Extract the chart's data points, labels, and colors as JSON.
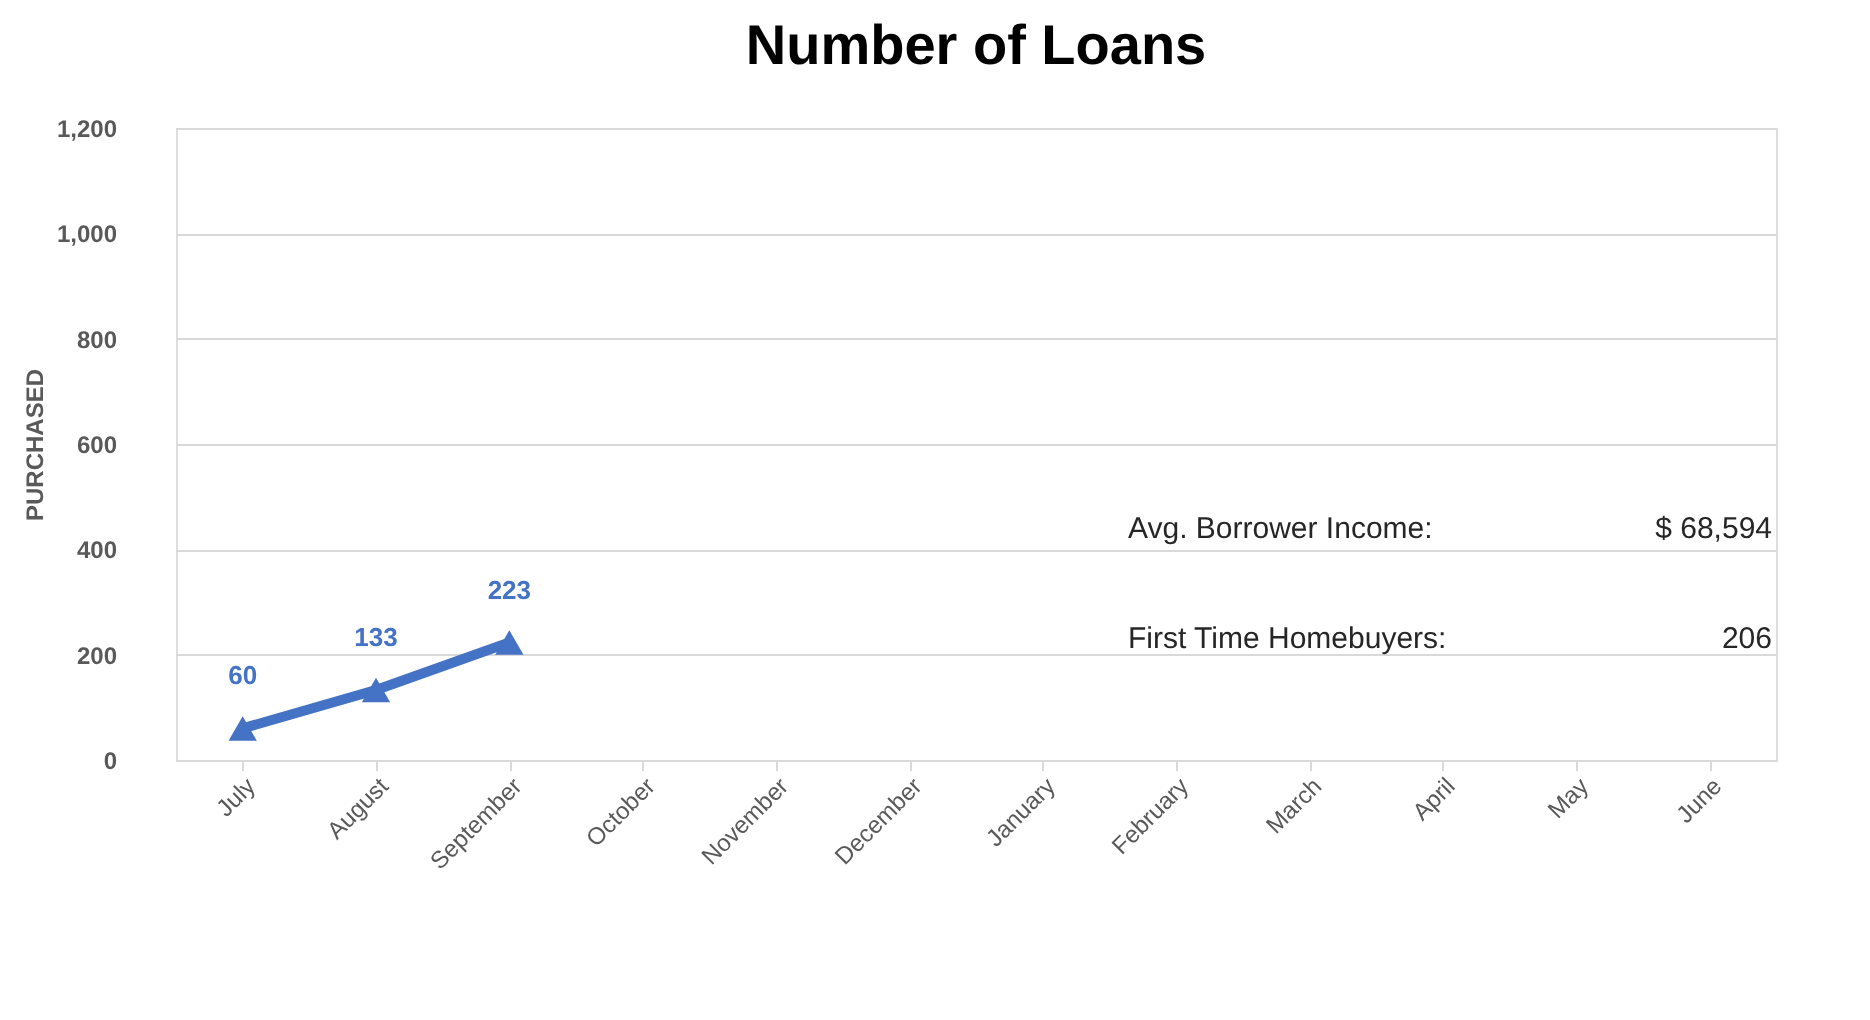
{
  "chart_data": {
    "type": "line",
    "title": "Number of Loans",
    "ylabel": "PURCHASED",
    "categories": [
      "July",
      "August",
      "September",
      "October",
      "November",
      "December",
      "January",
      "February",
      "March",
      "April",
      "May",
      "June"
    ],
    "series": [
      {
        "color": "#4472c4",
        "values": [
          60,
          133,
          223,
          null,
          null,
          null,
          null,
          null,
          null,
          null,
          null,
          null
        ]
      }
    ],
    "ylim": [
      0,
      1200
    ],
    "yticks": [
      0,
      200,
      400,
      600,
      800,
      {
        "value": 1000,
        "label": "1,000"
      },
      {
        "value": 1200,
        "label": "1,200"
      }
    ],
    "grid": "y",
    "marker": "triangle",
    "line_style": "solid",
    "data_labels": true,
    "annotations": [
      "Avg. Borrower Income:",
      "$ 68,594",
      "First Time Homebuyers:",
      "206"
    ]
  }
}
